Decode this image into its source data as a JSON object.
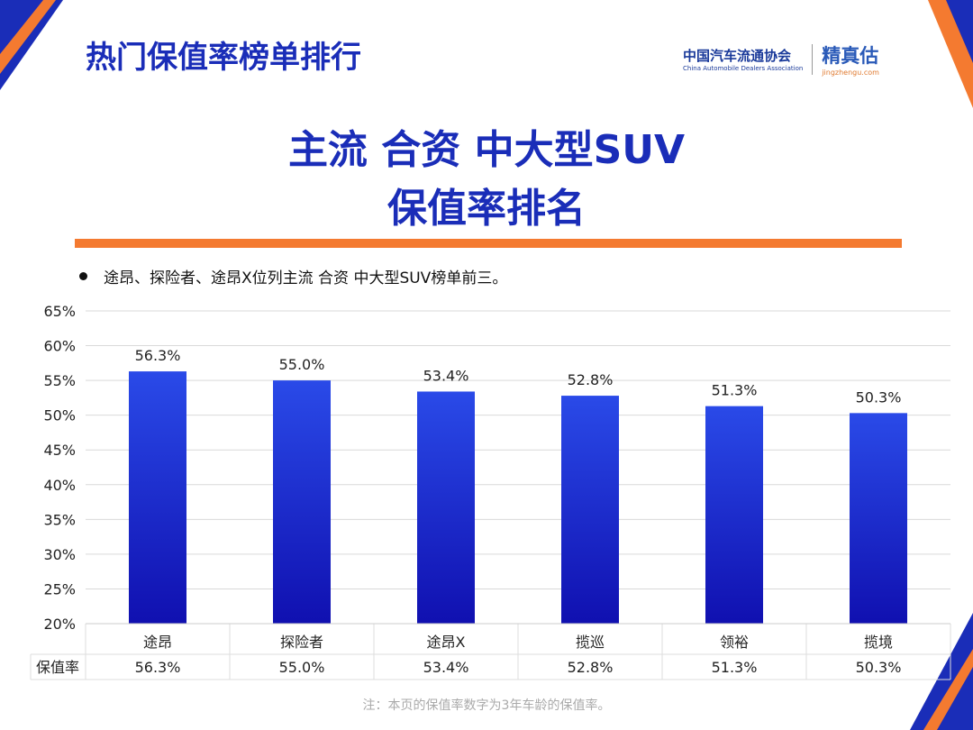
{
  "header": {
    "title": "热门保值率榜单排行",
    "logo_cn": "中国汽车流通协会",
    "logo_en": "China Automobile Dealers Association",
    "brand": "精真估",
    "brand_url": "jingzhengu.com"
  },
  "heading": {
    "line1": "主流 合资 中大型SUV",
    "line2": "保值率排名"
  },
  "bullet": "途昂、探险者、途昂X位列主流 合资 中大型SUV榜单前三。",
  "note": "注：本页的保值率数字为3年车龄的保值率。",
  "colors": {
    "bar_top": "#2a4ae8",
    "bar_bottom": "#1010b0",
    "accent": "#f47a30",
    "title": "#1a2db8"
  },
  "chart_data": {
    "type": "bar",
    "categories": [
      "途昂",
      "探险者",
      "途昂X",
      "揽巡",
      "领裕",
      "揽境"
    ],
    "series": [
      {
        "name": "保值率",
        "values": [
          56.3,
          55.0,
          53.4,
          52.8,
          51.3,
          50.3
        ]
      }
    ],
    "data_labels": [
      "56.3%",
      "55.0%",
      "53.4%",
      "52.8%",
      "51.3%",
      "50.3%"
    ],
    "yticks": [
      "20%",
      "25%",
      "30%",
      "35%",
      "40%",
      "45%",
      "50%",
      "55%",
      "60%",
      "65%"
    ],
    "ylim": [
      20,
      65
    ],
    "grid": true,
    "legend": "none",
    "table_label": "保值率"
  }
}
